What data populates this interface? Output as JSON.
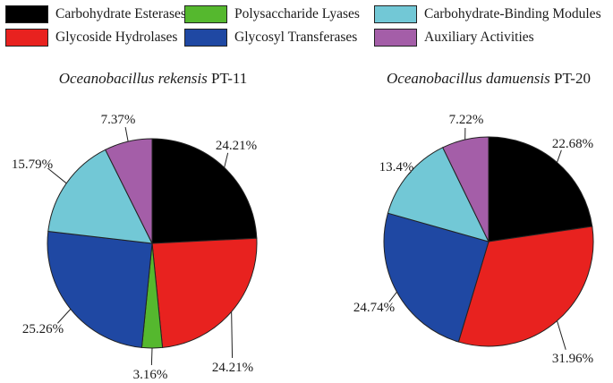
{
  "categories": [
    {
      "name": "Carbohydrate Esterases",
      "color": "#000000"
    },
    {
      "name": "Glycoside Hydrolases",
      "color": "#e8221f"
    },
    {
      "name": "Polysaccharide Lyases",
      "color": "#55b82e"
    },
    {
      "name": "Glycosyl Transferases",
      "color": "#1f48a3"
    },
    {
      "name": "Carbohydrate-Binding Modules",
      "color": "#72c8d6"
    },
    {
      "name": "Auxiliary Activities",
      "color": "#a45ea8"
    }
  ],
  "chart_data": [
    {
      "type": "pie",
      "title": {
        "species": "Oceanobacillus rekensis",
        "strain": "PT-11"
      },
      "slices": [
        {
          "category": "Carbohydrate Esterases",
          "value": 24.21,
          "label": "24.21%"
        },
        {
          "category": "Glycoside Hydrolases",
          "value": 24.21,
          "label": "24.21%"
        },
        {
          "category": "Polysaccharide Lyases",
          "value": 3.16,
          "label": "3.16%"
        },
        {
          "category": "Glycosyl Transferases",
          "value": 25.26,
          "label": "25.26%"
        },
        {
          "category": "Carbohydrate-Binding Modules",
          "value": 15.79,
          "label": "15.79%"
        },
        {
          "category": "Auxiliary Activities",
          "value": 7.37,
          "label": "7.37%"
        }
      ]
    },
    {
      "type": "pie",
      "title": {
        "species": "Oceanobacillus damuensis",
        "strain": "PT-20"
      },
      "slices": [
        {
          "category": "Carbohydrate Esterases",
          "value": 22.68,
          "label": "22.68%"
        },
        {
          "category": "Glycoside Hydrolases",
          "value": 31.96,
          "label": "31.96%"
        },
        {
          "category": "Glycosyl Transferases",
          "value": 24.74,
          "label": "24.74%"
        },
        {
          "category": "Carbohydrate-Binding Modules",
          "value": 13.4,
          "label": "13.4%"
        },
        {
          "category": "Auxiliary Activities",
          "value": 7.22,
          "label": "7.22%"
        }
      ]
    }
  ]
}
